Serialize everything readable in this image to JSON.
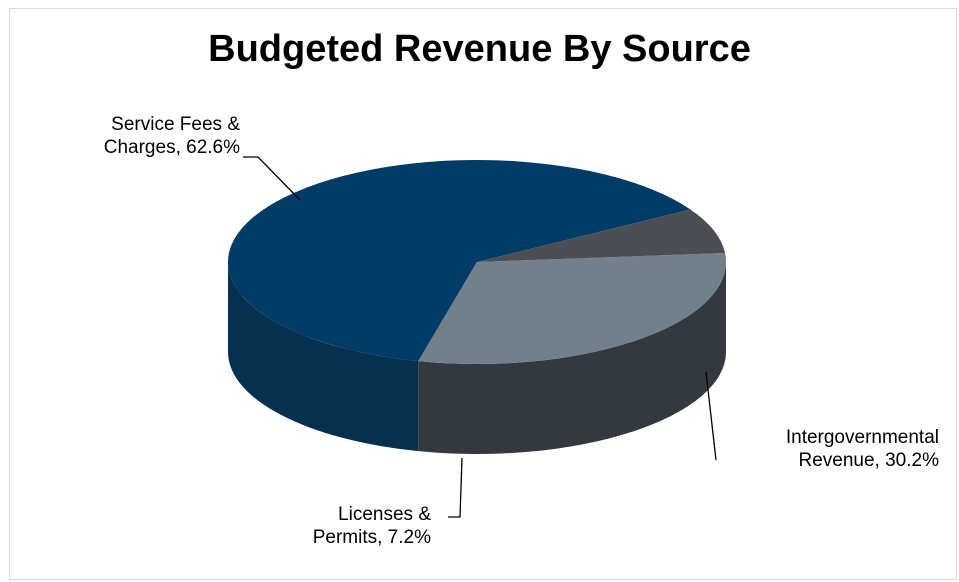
{
  "chart_data": {
    "type": "pie",
    "title": "Budgeted Revenue By Source",
    "slices": [
      {
        "name": "Service Fees & Charges",
        "label_line1": "Service Fees &",
        "label_line2": "Charges, 62.6%",
        "value": 62.6,
        "color": "#003c67",
        "side_color": "#07304f"
      },
      {
        "name": "Intergovernmental Revenue",
        "label_line1": "Intergovernmental",
        "label_line2": "Revenue, 30.2%",
        "value": 30.2,
        "color": "#72808b",
        "side_color": "#33393f"
      },
      {
        "name": "Licenses & Permits",
        "label_line1": "Licenses &",
        "label_line2": "Permits, 7.2%",
        "value": 7.2,
        "color": "#4b4e52",
        "side_color": "#27292b"
      }
    ]
  }
}
